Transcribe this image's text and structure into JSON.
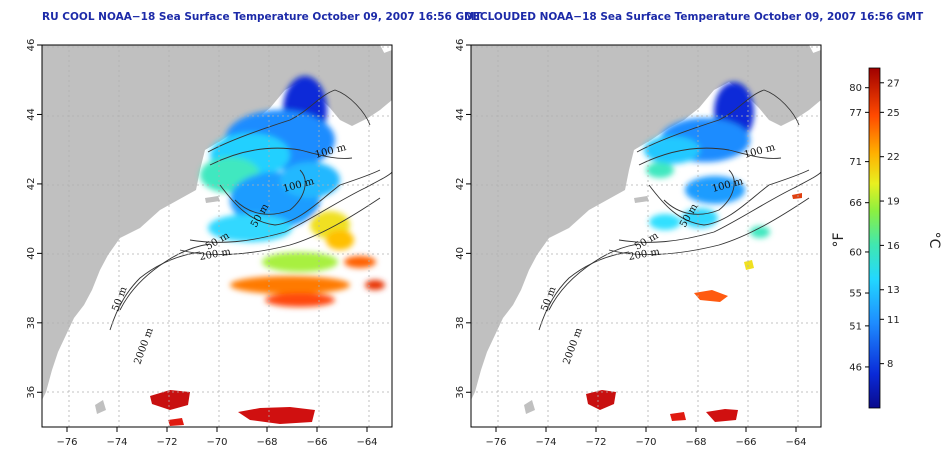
{
  "maps": [
    {
      "id": "left",
      "title": "RU COOL NOAA−18 Sea Surface Temperature October 09, 2007 16:56 GMT",
      "contour_labels": [
        "100 m",
        "100 m",
        "50 m",
        "200 m",
        "50 m",
        "2000 m",
        "50 m"
      ]
    },
    {
      "id": "right",
      "title": "DECLOUDED NOAA−18 Sea Surface Temperature October 09, 2007 16:56 GMT",
      "contour_labels": [
        "100 m",
        "100 m",
        "50 m",
        "200 m",
        "50 m",
        "2000 m",
        "50 m"
      ]
    }
  ],
  "axes": {
    "x_ticks": [
      "−76",
      "−74",
      "−72",
      "−70",
      "−68",
      "−66",
      "−64"
    ],
    "x_tick_values": [
      -76,
      -74,
      -72,
      -70,
      -68,
      -66,
      -64
    ],
    "y_ticks": [
      "36",
      "38",
      "40",
      "42",
      "44",
      "46"
    ],
    "y_tick_values": [
      36,
      38,
      40,
      42,
      44,
      46
    ],
    "lon_range": [
      -77,
      -63
    ],
    "lat_range": [
      35,
      46
    ]
  },
  "colorbar": {
    "fahrenheit_ticks": [
      "80",
      "77",
      "71",
      "66",
      "60",
      "55",
      "51",
      "46"
    ],
    "fahrenheit_values": [
      80,
      77,
      71,
      66,
      60,
      55,
      51,
      46
    ],
    "celsius_ticks": [
      "27",
      "25",
      "22",
      "19",
      "16",
      "13",
      "11",
      "8"
    ],
    "celsius_values": [
      27,
      25,
      22,
      19,
      16,
      13,
      11,
      8
    ],
    "fahrenheit_unit": "°F",
    "celsius_unit": "°C",
    "range_celsius": [
      5,
      28
    ]
  },
  "colors": {
    "land": "#c0c0c0",
    "ocean": "#ffffff",
    "grid": "#b0b0b0",
    "title": "#1c2aa8"
  }
}
